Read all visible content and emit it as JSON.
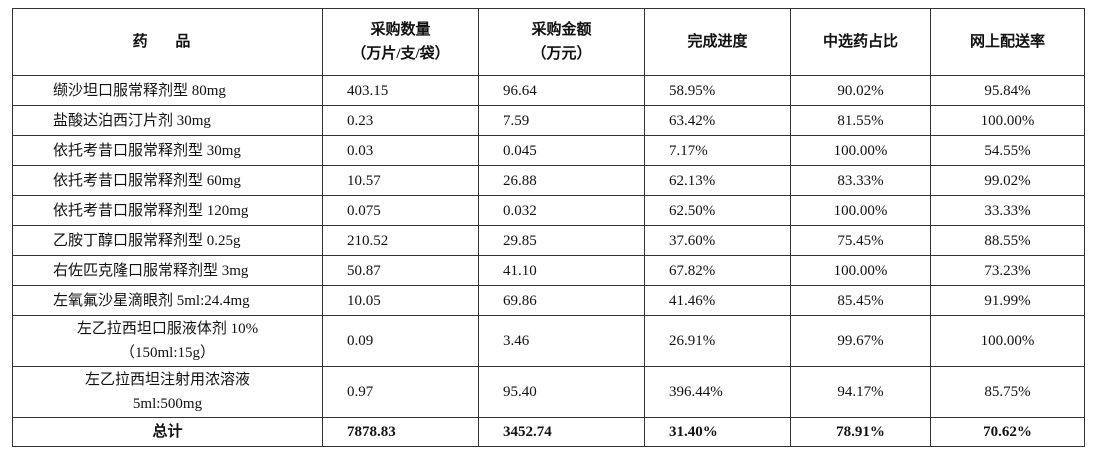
{
  "table": {
    "header": [
      "药 品",
      [
        "采购数量",
        "（万片/支/袋）"
      ],
      [
        "采购金额",
        "（万元）"
      ],
      "完成进度",
      "中选药占比",
      "网上配送率"
    ],
    "rows": [
      [
        "缬沙坦口服常释剂型 80mg",
        "403.15",
        "96.64",
        "58.95%",
        "90.02%",
        "95.84%"
      ],
      [
        "盐酸达泊西汀片剂 30mg",
        "0.23",
        "7.59",
        "63.42%",
        "81.55%",
        "100.00%"
      ],
      [
        "依托考昔口服常释剂型 30mg",
        "0.03",
        "0.045",
        "7.17%",
        "100.00%",
        "54.55%"
      ],
      [
        "依托考昔口服常释剂型 60mg",
        "10.57",
        "26.88",
        "62.13%",
        "83.33%",
        "99.02%"
      ],
      [
        "依托考昔口服常释剂型 120mg",
        "0.075",
        "0.032",
        "62.50%",
        "100.00%",
        "33.33%"
      ],
      [
        "乙胺丁醇口服常释剂型 0.25g",
        "210.52",
        "29.85",
        "37.60%",
        "75.45%",
        "88.55%"
      ],
      [
        "右佐匹克隆口服常释剂型 3mg",
        "50.87",
        "41.10",
        "67.82%",
        "100.00%",
        "73.23%"
      ],
      [
        "左氧氟沙星滴眼剂 5ml:24.4mg",
        "10.05",
        "69.86",
        "41.46%",
        "85.45%",
        "91.99%"
      ],
      [
        [
          "左乙拉西坦口服液体剂 10%",
          "（150ml:15g）"
        ],
        "0.09",
        "3.46",
        "26.91%",
        "99.67%",
        "100.00%"
      ],
      [
        [
          "左乙拉西坦注射用浓溶液",
          "5ml:500mg"
        ],
        "0.97",
        "95.40",
        "396.44%",
        "94.17%",
        "85.75%"
      ]
    ],
    "total": [
      "总计",
      "7878.83",
      "3452.74",
      "31.40%",
      "78.91%",
      "70.62%"
    ]
  }
}
